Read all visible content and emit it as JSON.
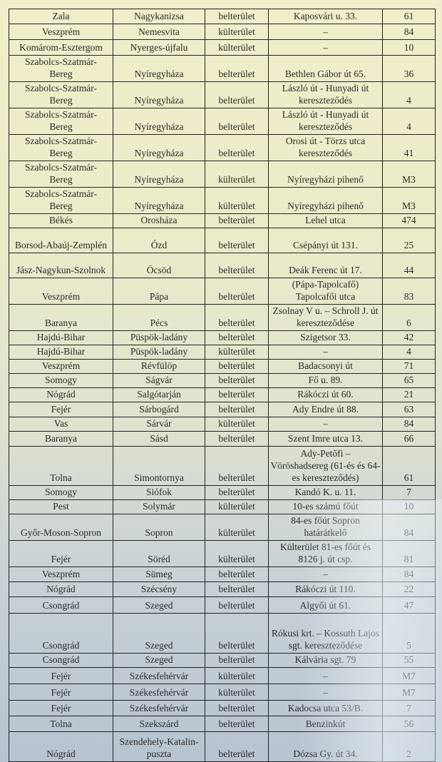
{
  "rows": [
    [
      "Zala",
      "Nagykanizsa",
      "belterület",
      "Kaposvári u. 33.",
      "61"
    ],
    [
      "Veszprém",
      "Nemesvita",
      "külterület",
      "–",
      "84"
    ],
    [
      "Komárom-Esztergom",
      "Nyerges-újfalu",
      "külterület",
      "–",
      "10"
    ],
    [
      "Szabolcs-Szatmár-\nBereg",
      "Nyíregyháza",
      "belterület",
      "Bethlen Gábor út 65.",
      "36"
    ],
    [
      "Szabolcs-Szatmár-\nBereg",
      "Nyíregyháza",
      "belterület",
      "László út - Hunyadi út\nkereszteződés",
      "4"
    ],
    [
      "Szabolcs-Szatmár-\nBereg",
      "Nyíregyháza",
      "belterület",
      "László út - Hunyadi út\nkereszteződés",
      "4"
    ],
    [
      "Szabolcs-Szatmár-\nBereg",
      "Nyíregyháza",
      "belterület",
      "Orosi út - Törzs utca\nkereszteződés",
      "41"
    ],
    [
      "Szabolcs-Szatmár-\nBereg",
      "Nyíregyháza",
      "külterület",
      "Nyíregyházi pihenő",
      "M3"
    ],
    [
      "Szabolcs-Szatmár-\nBereg",
      "Nyíregyháza",
      "külterület",
      "Nyíregyházi pihenő",
      "M3"
    ],
    [
      "Békés",
      "Orosháza",
      "belterület",
      "Lehel utca",
      "474"
    ],
    [
      "Borsod-Abaúj-Zemplén",
      "Ózd",
      "belterület",
      "Csépányi út 131.",
      "25"
    ],
    [
      "Jász-Nagykun-Szolnok",
      "Öcsöd",
      "belterület",
      "Deák Ferenc út 17.",
      "44"
    ],
    [
      "Veszprém",
      "Pápa",
      "belterület",
      "(Pápa-Tapolcafő)\nTapolcafői utca",
      "83"
    ],
    [
      "Baranya",
      "Pécs",
      "belterület",
      "Zsolnay V u. – Schroll J. út\nkereszteződése",
      "6"
    ],
    [
      "Hajdú-Bihar",
      "Püspök-ladány",
      "belterület",
      "Szigetsor 33.",
      "42"
    ],
    [
      "Hajdú-Bihar",
      "Püspök-ladány",
      "külterület",
      "–",
      "4"
    ],
    [
      "Veszprém",
      "Révfülöp",
      "belterület",
      "Badacsonyi út",
      "71"
    ],
    [
      "Somogy",
      "Ságvár",
      "belterület",
      "Fő u. 89.",
      "65"
    ],
    [
      "Nógrád",
      "Salgótarján",
      "belterület",
      "Rákóczi út 60.",
      "21"
    ],
    [
      "Fejér",
      "Sárbogárd",
      "belterület",
      "Ady Endre út 88.",
      "63"
    ],
    [
      "Vas",
      "Sárvár",
      "külterület",
      "–",
      "84"
    ],
    [
      "Baranya",
      "Sásd",
      "belterület",
      "Szent Imre utca 13.",
      "66"
    ],
    [
      "Tolna",
      "Simontornya",
      "belterület",
      "Ady-Petőfi –\nVöröshadsereg (61-és és 64-\nes kereszteződés)",
      "61"
    ],
    [
      "Somogy",
      "Siófok",
      "belterület",
      "Kandó K. u. 11.",
      "7"
    ],
    [
      "Pest",
      "Solymár",
      "külterület",
      "10-es számú főút",
      "10"
    ],
    [
      "Győr-Moson-Sopron",
      "Sopron",
      "külterület",
      "84-es főút Sopron\nhatárátkelő",
      "84"
    ],
    [
      "Fejér",
      "Söréd",
      "külterület",
      "Külterület 81-es főút és\n8126 j. út csp.",
      "81"
    ],
    [
      "Veszprém",
      "Sümeg",
      "belterület",
      "–",
      "84"
    ],
    [
      "Nógrád",
      "Szécsény",
      "belterület",
      "Rákóczi út 110.",
      "22"
    ],
    [
      "Csongrád",
      "Szeged",
      "belterület",
      "Algyői út 61.",
      "47"
    ],
    [
      "Csongrád",
      "Szeged",
      "belterület",
      "Rókusi krt. – Kossuth Lajos\nsgt. kereszteződése",
      "5"
    ],
    [
      "Csongrád",
      "Szeged",
      "belterület",
      "Kálvária sgt. 79",
      "55"
    ],
    [
      "Fejér",
      "Székesfehérvár",
      "külterület",
      "–",
      "M7"
    ],
    [
      "Fejér",
      "Székesfehérvár",
      "külterület",
      "–",
      "M7"
    ],
    [
      "Fejér",
      "Székesfehérvár",
      "belterület",
      "Kadocsa utca 53/B.",
      "7"
    ],
    [
      "Tolna",
      "Szekszárd",
      "belterület",
      "Benzinkút",
      "56"
    ],
    [
      "Nógrád",
      "Szendehely-Katalin-\npuszta",
      "belterület",
      "Dózsa Gy. út 34.",
      "2"
    ]
  ]
}
